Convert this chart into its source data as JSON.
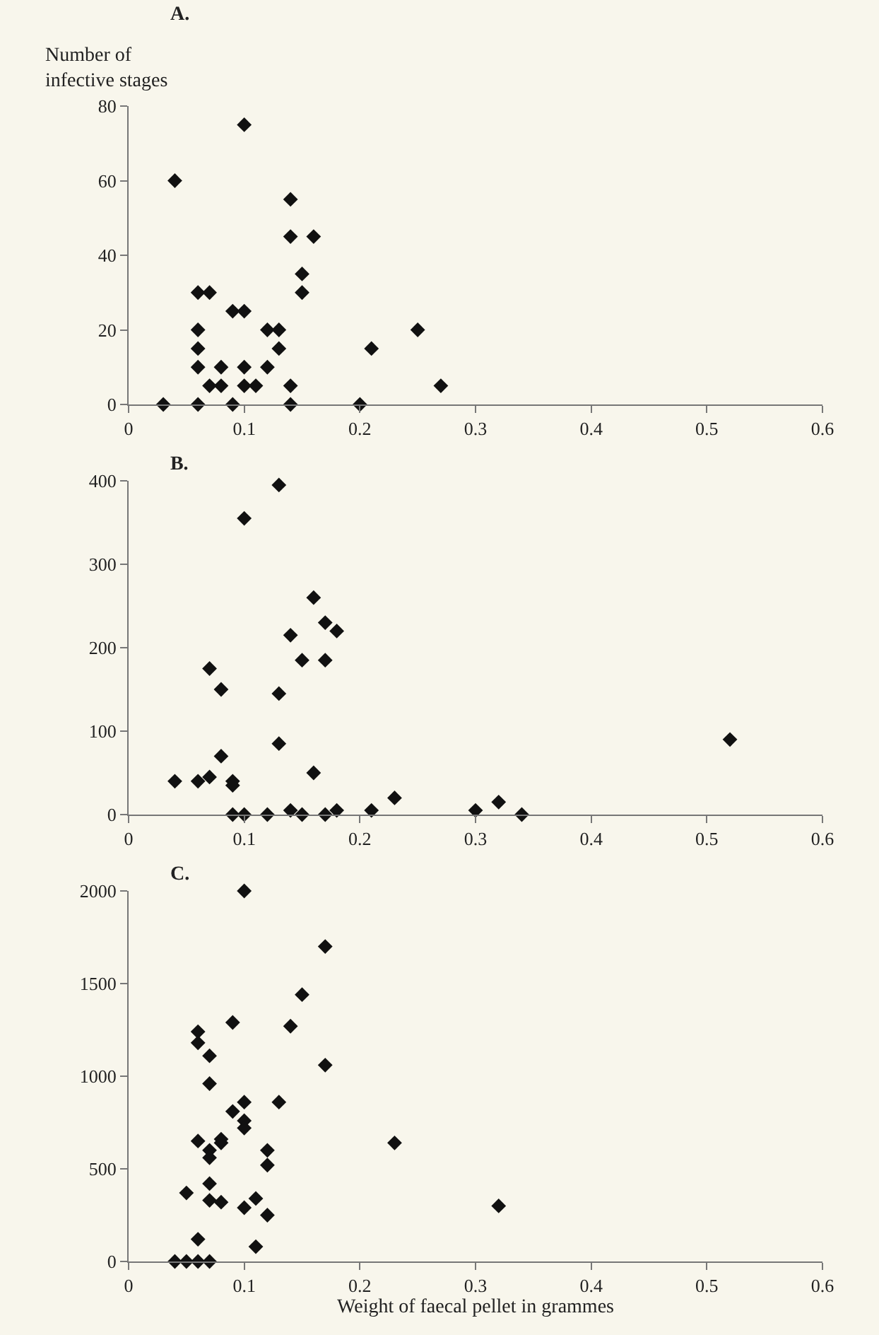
{
  "chart_data": [
    {
      "type": "scatter",
      "title": "A.",
      "ylabel": "Number of infective stages",
      "marker": "diamond",
      "grid": false,
      "x": [
        0.03,
        0.04,
        0.06,
        0.07,
        0.06,
        0.06,
        0.06,
        0.06,
        0.07,
        0.08,
        0.08,
        0.09,
        0.09,
        0.1,
        0.1,
        0.1,
        0.1,
        0.11,
        0.12,
        0.12,
        0.13,
        0.13,
        0.14,
        0.14,
        0.14,
        0.14,
        0.15,
        0.15,
        0.16,
        0.21,
        0.2,
        0.25,
        0.27
      ],
      "series": [
        {
          "color": "#111111",
          "values": [
            0,
            60,
            30,
            30,
            20,
            15,
            10,
            0,
            5,
            10,
            5,
            0,
            25,
            25,
            75,
            10,
            5,
            5,
            20,
            10,
            20,
            15,
            55,
            45,
            5,
            0,
            35,
            30,
            45,
            15,
            0,
            20,
            5
          ]
        }
      ],
      "xlim": [
        0,
        0.6
      ],
      "xticks": [
        0,
        0.1,
        0.2,
        0.3,
        0.4,
        0.5,
        0.6
      ],
      "ylim": [
        0,
        80
      ],
      "yticks": [
        0,
        20,
        40,
        60,
        80
      ]
    },
    {
      "type": "scatter",
      "title": "B.",
      "marker": "diamond",
      "grid": false,
      "x": [
        0.04,
        0.06,
        0.07,
        0.07,
        0.08,
        0.08,
        0.09,
        0.09,
        0.09,
        0.1,
        0.1,
        0.12,
        0.13,
        0.13,
        0.13,
        0.14,
        0.14,
        0.15,
        0.15,
        0.16,
        0.16,
        0.17,
        0.17,
        0.17,
        0.18,
        0.18,
        0.21,
        0.23,
        0.3,
        0.32,
        0.34,
        0.52
      ],
      "series": [
        {
          "color": "#111111",
          "values": [
            40,
            40,
            45,
            175,
            150,
            70,
            40,
            35,
            0,
            355,
            0,
            0,
            395,
            145,
            85,
            215,
            5,
            185,
            0,
            260,
            50,
            230,
            185,
            0,
            220,
            5,
            5,
            20,
            5,
            15,
            0,
            90
          ]
        }
      ],
      "xlim": [
        0,
        0.6
      ],
      "xticks": [
        0,
        0.1,
        0.2,
        0.3,
        0.4,
        0.5,
        0.6
      ],
      "ylim": [
        0,
        400
      ],
      "yticks": [
        0,
        100,
        200,
        300,
        400
      ]
    },
    {
      "type": "scatter",
      "title": "C.",
      "xlabel": "Weight of faecal pellet in grammes",
      "marker": "diamond",
      "grid": false,
      "x": [
        0.04,
        0.05,
        0.06,
        0.07,
        0.05,
        0.06,
        0.06,
        0.06,
        0.06,
        0.07,
        0.07,
        0.07,
        0.07,
        0.07,
        0.07,
        0.08,
        0.08,
        0.08,
        0.09,
        0.09,
        0.1,
        0.1,
        0.1,
        0.1,
        0.1,
        0.11,
        0.11,
        0.12,
        0.12,
        0.12,
        0.13,
        0.14,
        0.15,
        0.17,
        0.17,
        0.23,
        0.32
      ],
      "series": [
        {
          "color": "#111111",
          "values": [
            0,
            0,
            0,
            0,
            370,
            120,
            650,
            1180,
            1240,
            1110,
            960,
            600,
            560,
            420,
            330,
            320,
            640,
            660,
            1290,
            810,
            2000,
            860,
            760,
            720,
            290,
            340,
            80,
            600,
            520,
            250,
            860,
            1270,
            1440,
            1700,
            1060,
            640,
            300
          ]
        }
      ],
      "xlim": [
        0,
        0.6
      ],
      "xticks": [
        0,
        0.1,
        0.2,
        0.3,
        0.4,
        0.5,
        0.6
      ],
      "ylim": [
        0,
        2000
      ],
      "yticks": [
        0,
        500,
        1000,
        1500,
        2000
      ]
    }
  ]
}
